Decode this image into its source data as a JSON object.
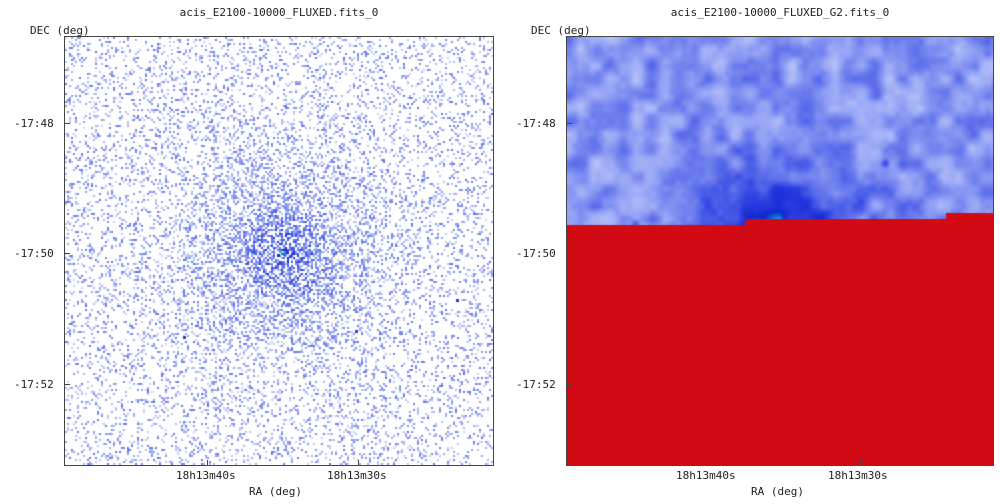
{
  "panels": [
    {
      "title": "acis_E2100-10000_FLUXED.fits_0",
      "ylabel": "DEC (deg)",
      "xlabel": "RA (deg)",
      "yticks": [
        "-17:48",
        "-17:50",
        "-17:52"
      ],
      "xticks": [
        "18h13m40s",
        "18h13m30s"
      ],
      "style": "raw"
    },
    {
      "title": "acis_E2100-10000_FLUXED_G2.fits_0",
      "ylabel": "DEC (deg)",
      "xlabel": "RA (deg)",
      "yticks": [
        "-17:48",
        "-17:50",
        "-17:52"
      ],
      "xticks": [
        "18h13m40s",
        "18h13m30s"
      ],
      "style": "smoothed"
    }
  ],
  "colors": {
    "frame": "#444444",
    "low": "#ffffff",
    "mid": "#7c8cf0",
    "high": "#1a2ad8",
    "peak": "#d0101e"
  }
}
